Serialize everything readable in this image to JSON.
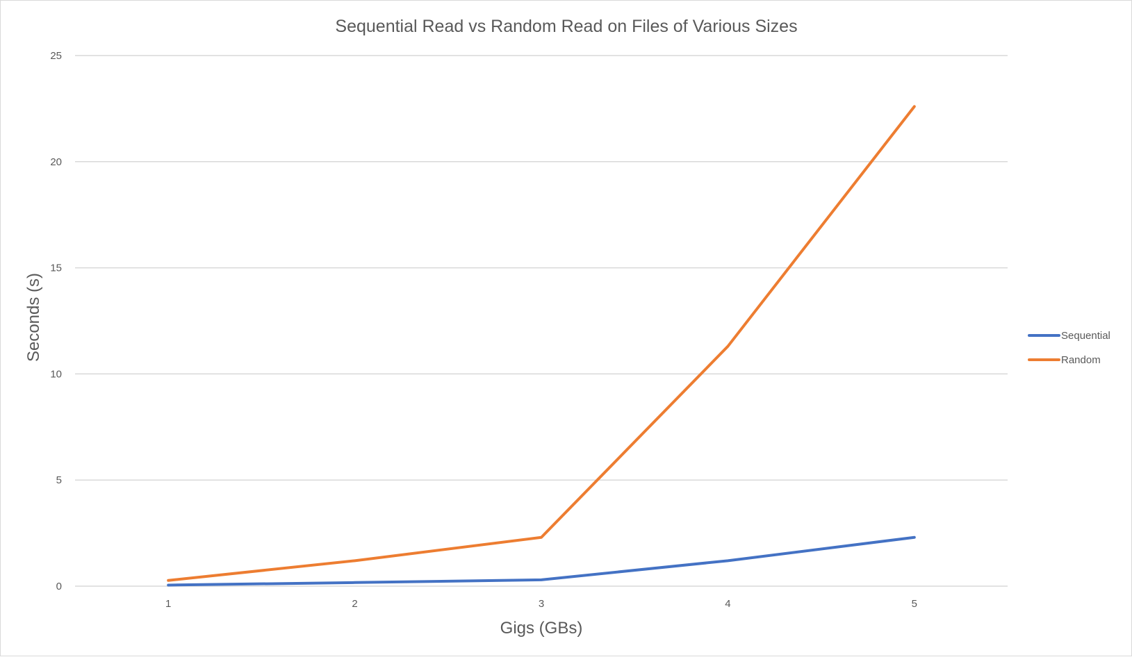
{
  "chart_data": {
    "type": "line",
    "title": "Sequential Read vs Random Read on Files of Various Sizes",
    "xlabel": "Gigs (GBs)",
    "ylabel": "Seconds (s)",
    "categories": [
      "1",
      "2",
      "3",
      "4",
      "5"
    ],
    "ylim": [
      0,
      25
    ],
    "yticks": [
      0,
      5,
      10,
      15,
      20,
      25
    ],
    "grid": true,
    "legend_position": "right",
    "series": [
      {
        "name": "Sequential",
        "color": "#4472c4",
        "values": [
          0.05,
          0.17,
          0.3,
          1.2,
          2.3
        ]
      },
      {
        "name": "Random",
        "color": "#ed7d31",
        "values": [
          0.27,
          1.2,
          2.3,
          11.3,
          22.6
        ]
      }
    ]
  }
}
